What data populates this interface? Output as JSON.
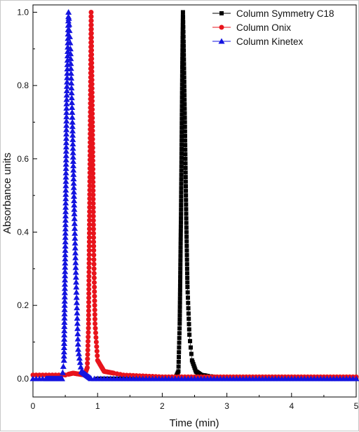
{
  "chart_data": {
    "type": "scatter",
    "title": "",
    "xlabel": "Time (min)",
    "ylabel": "Absorbance units",
    "xlim": [
      0,
      5
    ],
    "ylim": [
      -0.05,
      1.02
    ],
    "x_ticks": [
      "0",
      "1",
      "2",
      "3",
      "4",
      "5"
    ],
    "y_ticks": [
      "0.0",
      "0.2",
      "0.4",
      "0.6",
      "0.8",
      "1.0"
    ],
    "legend_position": "top-right",
    "grid": false,
    "series": [
      {
        "name": "Column Symmetry C18",
        "color": "#000000",
        "marker": "square",
        "peak_time": 2.32,
        "baseline": 0.0,
        "points": [
          [
            1.0,
            0.0
          ],
          [
            2.0,
            0.0
          ],
          [
            2.2,
            0.0
          ],
          [
            2.25,
            0.02
          ],
          [
            2.27,
            0.15
          ],
          [
            2.29,
            0.45
          ],
          [
            2.31,
            0.85
          ],
          [
            2.32,
            1.0
          ],
          [
            2.33,
            0.92
          ],
          [
            2.35,
            0.7
          ],
          [
            2.37,
            0.45
          ],
          [
            2.39,
            0.25
          ],
          [
            2.42,
            0.12
          ],
          [
            2.46,
            0.05
          ],
          [
            2.52,
            0.02
          ],
          [
            2.6,
            0.01
          ],
          [
            3.0,
            0.0
          ],
          [
            4.0,
            0.0
          ],
          [
            5.0,
            0.0
          ]
        ]
      },
      {
        "name": "Column Onix",
        "color": "#e8141c",
        "marker": "circle",
        "peak_time": 0.9,
        "baseline": 0.01,
        "points": [
          [
            0.0,
            0.01
          ],
          [
            0.5,
            0.01
          ],
          [
            0.62,
            0.015
          ],
          [
            0.8,
            0.01
          ],
          [
            0.84,
            0.03
          ],
          [
            0.86,
            0.15
          ],
          [
            0.88,
            0.55
          ],
          [
            0.9,
            1.0
          ],
          [
            0.92,
            0.7
          ],
          [
            0.94,
            0.35
          ],
          [
            0.96,
            0.15
          ],
          [
            1.0,
            0.05
          ],
          [
            1.1,
            0.02
          ],
          [
            1.4,
            0.01
          ],
          [
            2.0,
            0.005
          ],
          [
            5.0,
            0.005
          ]
        ]
      },
      {
        "name": "Column Kinetex",
        "color": "#1414e0",
        "marker": "triangle",
        "peak_time": 0.55,
        "baseline": 0.0,
        "points": [
          [
            0.0,
            0.0
          ],
          [
            0.45,
            0.0
          ],
          [
            0.48,
            0.05
          ],
          [
            0.5,
            0.35
          ],
          [
            0.52,
            0.75
          ],
          [
            0.55,
            1.0
          ],
          [
            0.58,
            0.9
          ],
          [
            0.61,
            0.7
          ],
          [
            0.64,
            0.45
          ],
          [
            0.67,
            0.25
          ],
          [
            0.7,
            0.08
          ],
          [
            0.75,
            0.02
          ],
          [
            0.9,
            0.0
          ],
          [
            1.3,
            0.0
          ],
          [
            2.0,
            0.0
          ],
          [
            5.0,
            0.0
          ]
        ]
      }
    ]
  }
}
